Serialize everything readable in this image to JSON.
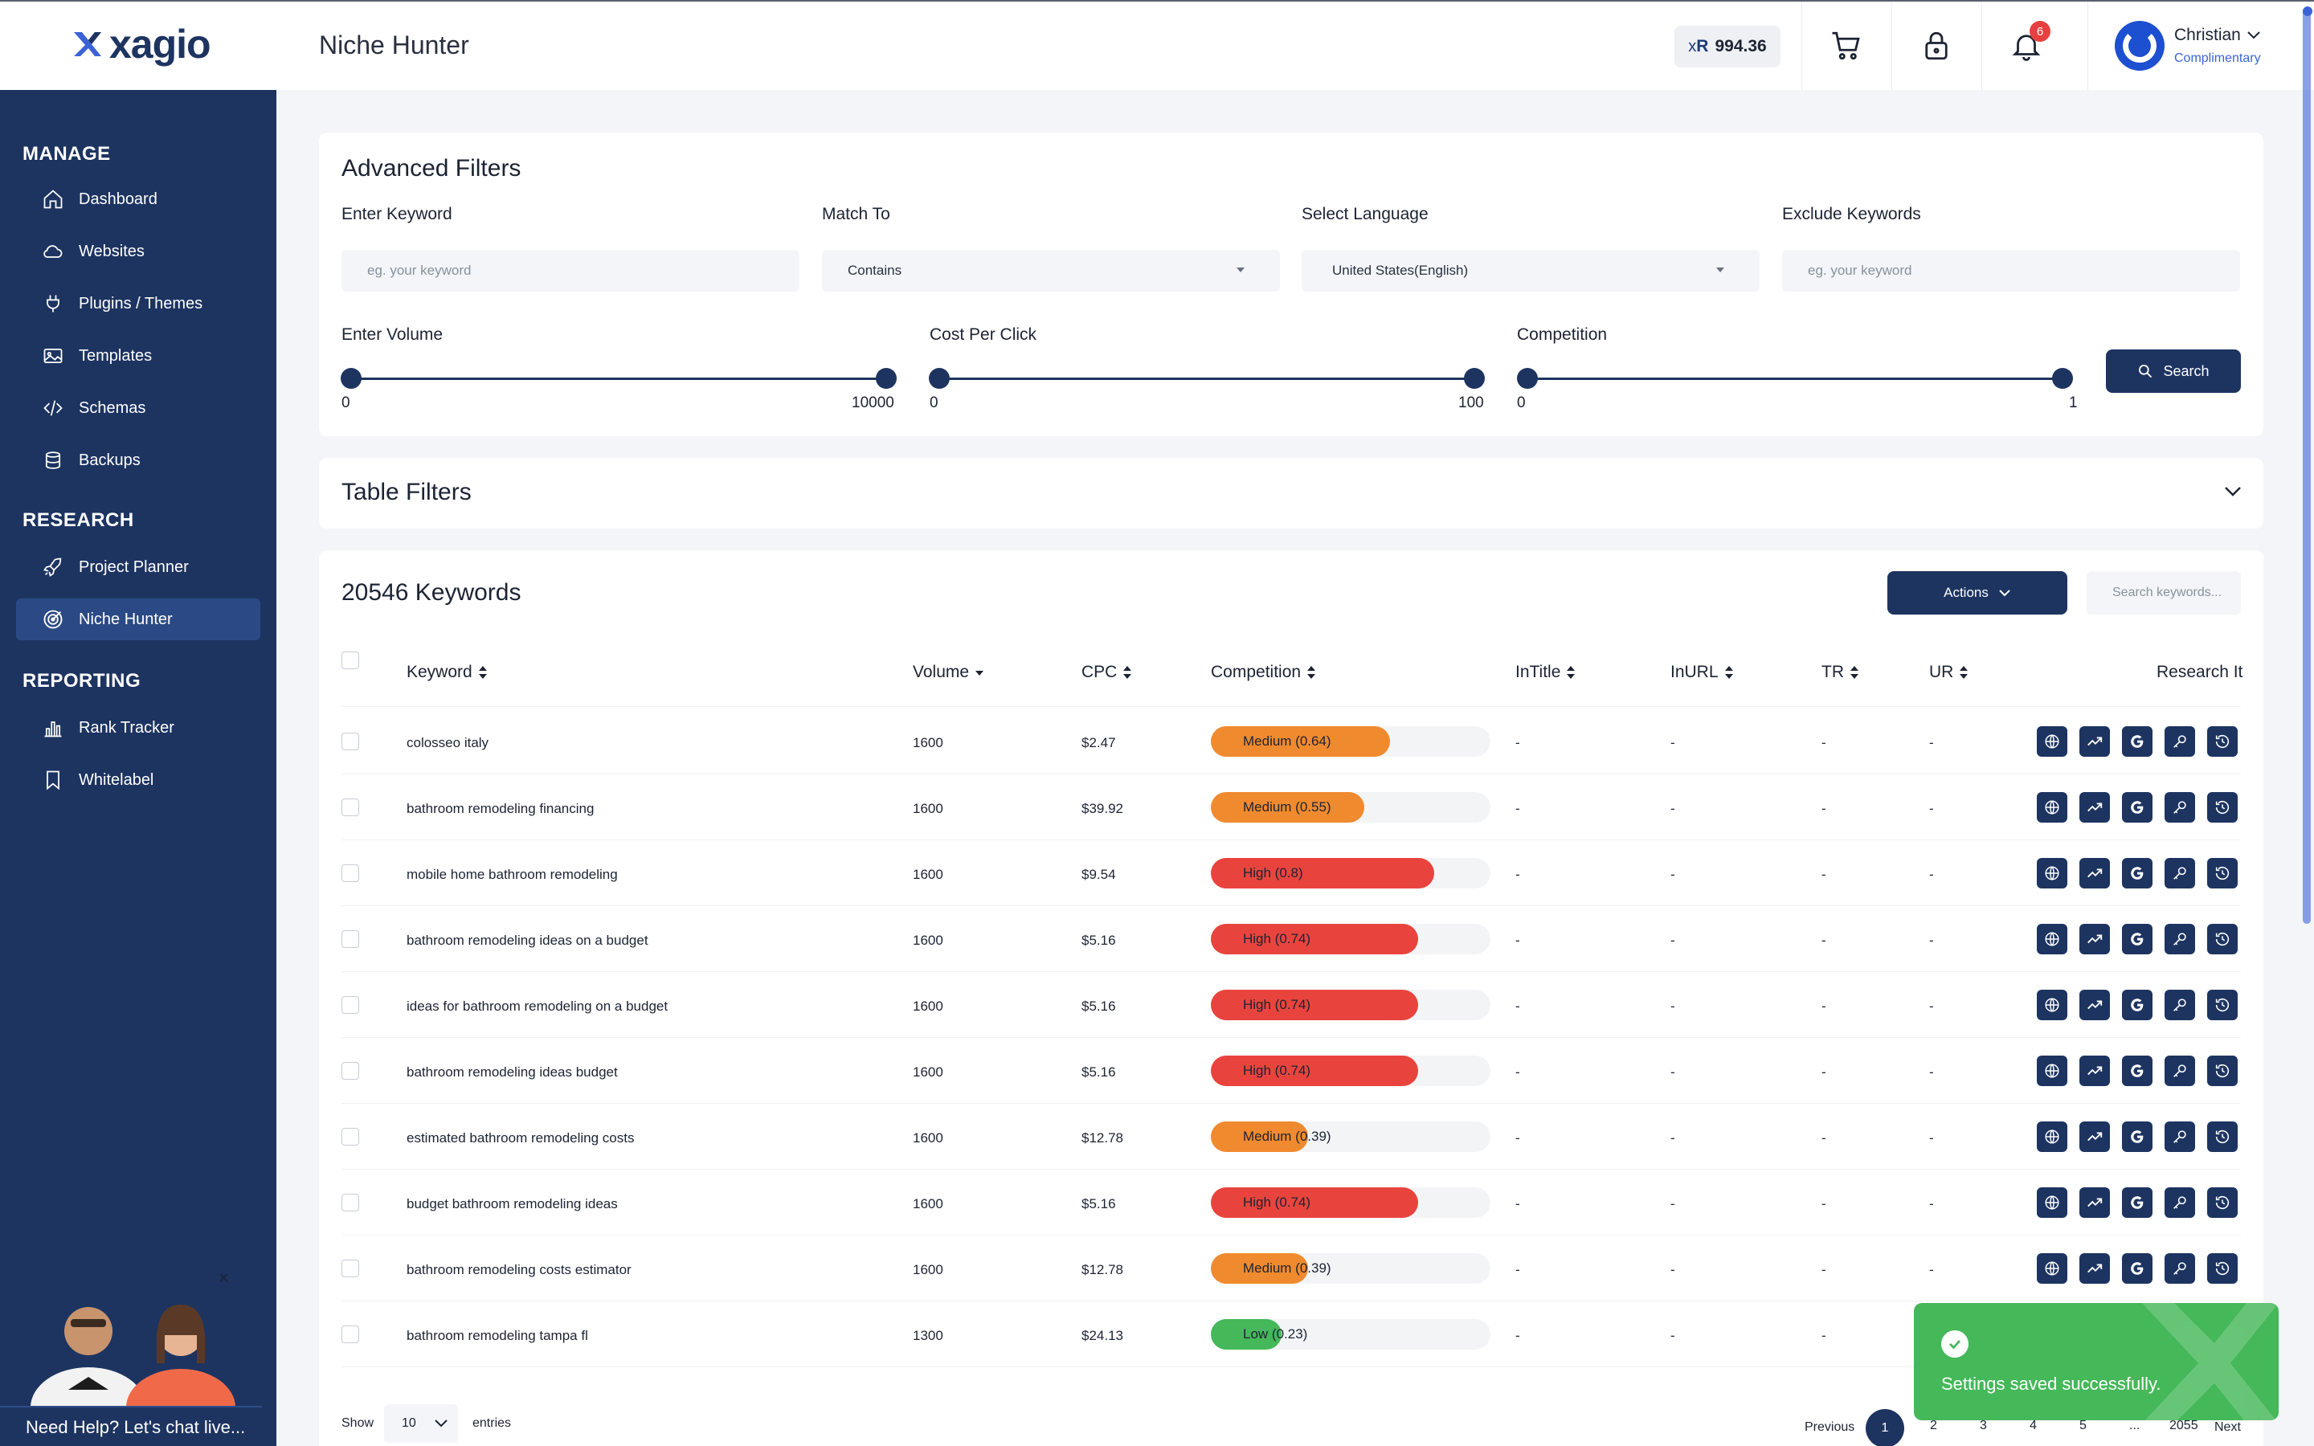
{
  "header": {
    "logo_text": "xagio",
    "page_title": "Niche Hunter",
    "balance_prefix": "x",
    "balance_suffix": "R",
    "balance_value": "994.36",
    "notifications_count": "6",
    "user_name": "Christian",
    "user_role": "Complimentary"
  },
  "sidebar": {
    "sections": [
      {
        "title": "MANAGE",
        "items": [
          {
            "label": "Dashboard",
            "icon": "home-icon"
          },
          {
            "label": "Websites",
            "icon": "cloud-icon"
          },
          {
            "label": "Plugins / Themes",
            "icon": "plug-icon"
          },
          {
            "label": "Templates",
            "icon": "image-icon"
          },
          {
            "label": "Schemas",
            "icon": "code-icon"
          },
          {
            "label": "Backups",
            "icon": "database-icon"
          }
        ]
      },
      {
        "title": "RESEARCH",
        "items": [
          {
            "label": "Project Planner",
            "icon": "rocket-icon"
          },
          {
            "label": "Niche Hunter",
            "icon": "target-icon",
            "active": true
          }
        ]
      },
      {
        "title": "REPORTING",
        "items": [
          {
            "label": "Rank Tracker",
            "icon": "bar-chart-icon"
          },
          {
            "label": "Whitelabel",
            "icon": "bookmark-icon"
          }
        ]
      }
    ],
    "chat_label": "Need Help? Let's chat live...",
    "chat_close": "×"
  },
  "advanced_filters": {
    "title": "Advanced Filters",
    "keyword_label": "Enter Keyword",
    "keyword_placeholder": "eg. your keyword",
    "match_label": "Match To",
    "match_value": "Contains",
    "language_label": "Select Language",
    "language_value": "United States(English)",
    "exclude_label": "Exclude Keywords",
    "exclude_placeholder": "eg. your keyword",
    "volume_label": "Enter Volume",
    "volume_min": "0",
    "volume_max": "10000",
    "cpc_label": "Cost Per Click",
    "cpc_min": "0",
    "cpc_max": "100",
    "competition_label": "Competition",
    "competition_min": "0",
    "competition_max": "1",
    "search_label": "Search"
  },
  "table_filters": {
    "title": "Table Filters"
  },
  "keywords_table": {
    "count_title": "20546 Keywords",
    "actions_label": "Actions",
    "search_placeholder": "Search keywords...",
    "columns": {
      "keyword": "Keyword",
      "volume": "Volume",
      "cpc": "CPC",
      "competition": "Competition",
      "intitle": "InTitle",
      "inurl": "InURL",
      "tr": "TR",
      "ur": "UR",
      "research": "Research It"
    },
    "rows": [
      {
        "keyword": "colosseo italy",
        "volume": "1600",
        "cpc": "$2.47",
        "competition": "Medium (0.64)",
        "level": 0.64,
        "color": "#f08a2e",
        "intitle": "-",
        "inurl": "-",
        "tr": "-",
        "ur": "-"
      },
      {
        "keyword": "bathroom remodeling financing",
        "volume": "1600",
        "cpc": "$39.92",
        "competition": "Medium (0.55)",
        "level": 0.55,
        "color": "#f08a2e",
        "intitle": "-",
        "inurl": "-",
        "tr": "-",
        "ur": "-"
      },
      {
        "keyword": "mobile home bathroom remodeling",
        "volume": "1600",
        "cpc": "$9.54",
        "competition": "High (0.8)",
        "level": 0.8,
        "color": "#e8443d",
        "intitle": "-",
        "inurl": "-",
        "tr": "-",
        "ur": "-"
      },
      {
        "keyword": "bathroom remodeling ideas on a budget",
        "volume": "1600",
        "cpc": "$5.16",
        "competition": "High (0.74)",
        "level": 0.74,
        "color": "#e8443d",
        "intitle": "-",
        "inurl": "-",
        "tr": "-",
        "ur": "-"
      },
      {
        "keyword": "ideas for bathroom remodeling on a budget",
        "volume": "1600",
        "cpc": "$5.16",
        "competition": "High (0.74)",
        "level": 0.74,
        "color": "#e8443d",
        "intitle": "-",
        "inurl": "-",
        "tr": "-",
        "ur": "-"
      },
      {
        "keyword": "bathroom remodeling ideas budget",
        "volume": "1600",
        "cpc": "$5.16",
        "competition": "High (0.74)",
        "level": 0.74,
        "color": "#e8443d",
        "intitle": "-",
        "inurl": "-",
        "tr": "-",
        "ur": "-"
      },
      {
        "keyword": "estimated bathroom remodeling costs",
        "volume": "1600",
        "cpc": "$12.78",
        "competition": "Medium (0.39)",
        "level": 0.39,
        "color": "#f08a2e",
        "intitle": "-",
        "inurl": "-",
        "tr": "-",
        "ur": "-"
      },
      {
        "keyword": "budget bathroom remodeling ideas",
        "volume": "1600",
        "cpc": "$5.16",
        "competition": "High (0.74)",
        "level": 0.74,
        "color": "#e8443d",
        "intitle": "-",
        "inurl": "-",
        "tr": "-",
        "ur": "-"
      },
      {
        "keyword": "bathroom remodeling costs estimator",
        "volume": "1600",
        "cpc": "$12.78",
        "competition": "Medium (0.39)",
        "level": 0.39,
        "color": "#f08a2e",
        "intitle": "-",
        "inurl": "-",
        "tr": "-",
        "ur": "-"
      },
      {
        "keyword": "bathroom remodeling tampa fl",
        "volume": "1300",
        "cpc": "$24.13",
        "competition": "Low (0.23)",
        "level": 0.23,
        "color": "#45b85a",
        "intitle": "-",
        "inurl": "-",
        "tr": "-",
        "ur": "-"
      }
    ],
    "research_icons": [
      "globe-icon",
      "trend-icon",
      "google-icon",
      "key-icon",
      "history-icon"
    ],
    "show_label": "Show",
    "show_value": "10",
    "entries_label": "entries",
    "pagination": {
      "previous": "Previous",
      "current": "1",
      "pages": [
        "2",
        "3",
        "4",
        "5",
        "...",
        "2055"
      ],
      "next": "Next"
    }
  },
  "toast": {
    "message": "Settings saved successfully."
  },
  "colors": {
    "brand": "#1d3461",
    "sidebar_active": "#2b4a85",
    "high": "#e8443d",
    "medium": "#f08a2e",
    "low": "#45b85a",
    "toast": "#45b85a"
  }
}
